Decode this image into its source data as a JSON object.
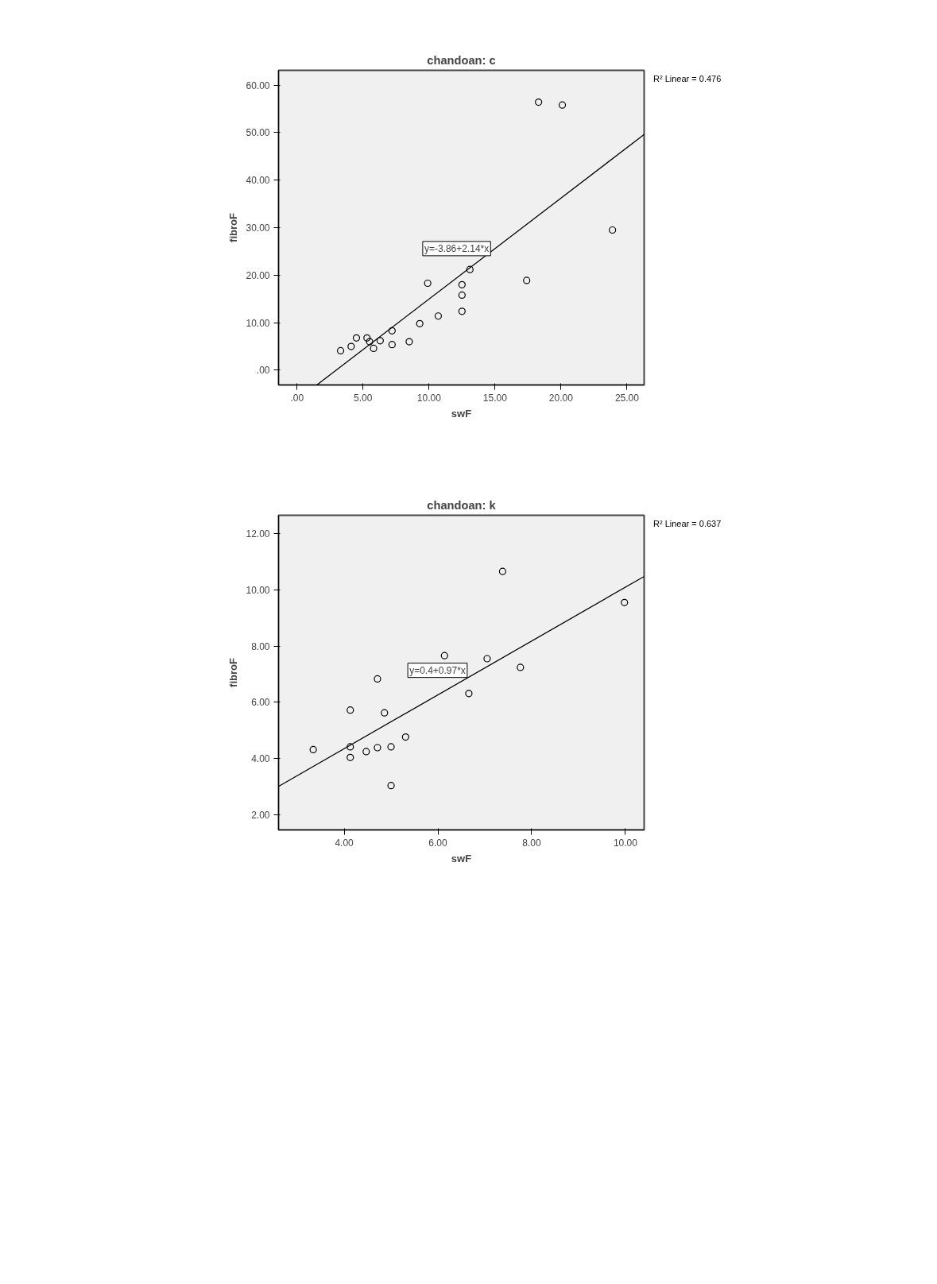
{
  "chart_data": [
    {
      "type": "scatter",
      "title": "chandoan: c",
      "xlabel": "swF",
      "ylabel": "fibroF",
      "xlim": [
        -1.4,
        26.3
      ],
      "ylim": [
        -3.1,
        63.1
      ],
      "xticks": [
        {
          "value": 0,
          "label": ".00"
        },
        {
          "value": 5,
          "label": "5.00"
        },
        {
          "value": 10,
          "label": "10.00"
        },
        {
          "value": 15,
          "label": "15.00"
        },
        {
          "value": 20,
          "label": "20.00"
        },
        {
          "value": 25,
          "label": "25.00"
        }
      ],
      "yticks": [
        {
          "value": 0,
          "label": ".00"
        },
        {
          "value": 10,
          "label": "10.00"
        },
        {
          "value": 20,
          "label": "20.00"
        },
        {
          "value": 30,
          "label": "30.00"
        },
        {
          "value": 40,
          "label": "40.00"
        },
        {
          "value": 50,
          "label": "50.00"
        },
        {
          "value": 60,
          "label": "60.00"
        }
      ],
      "series": [
        {
          "type": "scatter",
          "marker": "circle",
          "color": "#000000",
          "x": [
            3.3,
            4.1,
            4.5,
            5.3,
            5.5,
            5.8,
            6.3,
            7.2,
            7.2,
            8.5,
            9.3,
            9.9,
            10.7,
            12.5,
            12.5,
            12.5,
            13.1,
            17.4,
            18.3,
            20.1,
            23.9
          ],
          "values": [
            4.1,
            5.0,
            6.8,
            6.8,
            6.0,
            4.6,
            6.2,
            8.3,
            5.4,
            6.0,
            9.8,
            18.3,
            11.4,
            18.0,
            15.8,
            12.4,
            21.2,
            18.9,
            56.4,
            55.8,
            29.5
          ]
        },
        {
          "type": "line",
          "color": "#000000",
          "x": [
            1.5,
            26.3
          ],
          "values": [
            -3.1,
            49.6
          ]
        }
      ],
      "annotations": [
        "y=-3.86+2.14*x",
        "R² Linear = 0.476"
      ]
    },
    {
      "type": "scatter",
      "title": "chandoan: k",
      "xlabel": "swF",
      "ylabel": "fibroF",
      "xlim": [
        2.6,
        10.4
      ],
      "ylim": [
        1.45,
        12.66
      ],
      "xticks": [
        {
          "value": 4,
          "label": "4.00"
        },
        {
          "value": 6,
          "label": "6.00"
        },
        {
          "value": 8,
          "label": "8.00"
        },
        {
          "value": 10,
          "label": "10.00"
        }
      ],
      "yticks": [
        {
          "value": 2,
          "label": "2.00"
        },
        {
          "value": 4,
          "label": "4.00"
        },
        {
          "value": 6,
          "label": "6.00"
        },
        {
          "value": 8,
          "label": "8.00"
        },
        {
          "value": 10,
          "label": "10.00"
        },
        {
          "value": 12,
          "label": "12.00"
        }
      ],
      "series": [
        {
          "type": "scatter",
          "marker": "circle",
          "color": "#000000",
          "x": [
            3.34,
            4.13,
            4.13,
            4.13,
            4.47,
            4.71,
            4.71,
            4.86,
            5.0,
            5.0,
            5.31,
            6.14,
            6.66,
            7.38,
            7.05,
            7.76,
            9.98
          ],
          "values": [
            4.31,
            5.72,
            4.41,
            4.03,
            4.24,
            6.83,
            4.38,
            5.62,
            4.41,
            3.03,
            4.76,
            7.66,
            6.31,
            10.66,
            7.55,
            7.24,
            9.55
          ]
        },
        {
          "type": "line",
          "color": "#000000",
          "x": [
            2.6,
            10.4
          ],
          "values": [
            3.0,
            10.48
          ]
        }
      ],
      "annotations": [
        "y=0.4+0.97*x",
        "R² Linear = 0.637"
      ]
    }
  ]
}
